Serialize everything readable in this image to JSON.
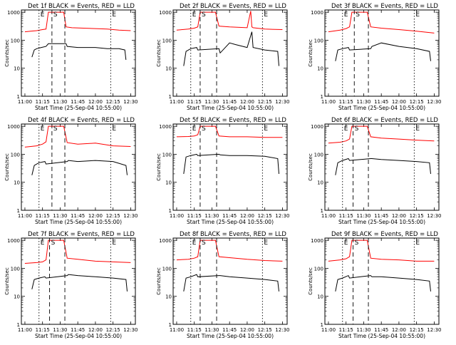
{
  "chart_data": [
    {
      "type": "line",
      "title": "Det 1f BLACK = Events, RED = LLD",
      "xlabel": "Start Time (25-Sep-04 10:55:00)",
      "ylabel": "Counts/sec",
      "scale_y": "log",
      "ylim": [
        1,
        1000
      ],
      "x_ticks": [
        "11:00",
        "11:15",
        "11:30",
        "11:45",
        "12:00",
        "12:15",
        "12:30"
      ],
      "markers": [
        {
          "label": "E",
          "style": "dotted",
          "x": "11:12"
        },
        {
          "label": "S",
          "style": "dashed",
          "x": "11:23"
        },
        {
          "label": "",
          "style": "dashed",
          "x": "11:34"
        },
        {
          "label": "E",
          "style": "dotted",
          "x": "12:13"
        }
      ],
      "series": [
        {
          "name": "LLD",
          "color": "#ff0000",
          "x": [
            "11:00",
            "11:05",
            "11:10",
            "11:15",
            "11:18",
            "11:20",
            "11:24",
            "11:30",
            "11:33",
            "11:35",
            "11:40",
            "11:50",
            "12:00",
            "12:10",
            "12:20",
            "12:30"
          ],
          "values": [
            200,
            210,
            220,
            240,
            250,
            1000,
            1000,
            1000,
            1000,
            300,
            280,
            270,
            260,
            250,
            230,
            220
          ]
        },
        {
          "name": "Events",
          "color": "#000000",
          "x": [
            "11:06",
            "11:08",
            "11:10",
            "11:14",
            "11:18",
            "11:20",
            "11:35",
            "11:36",
            "11:45",
            "12:00",
            "12:10",
            "12:20",
            "12:25",
            "12:26"
          ],
          "values": [
            25,
            45,
            50,
            55,
            60,
            75,
            75,
            60,
            55,
            55,
            50,
            50,
            45,
            20
          ]
        }
      ]
    },
    {
      "type": "line",
      "title": "Det 2f BLACK = Events, RED = LLD",
      "xlabel": "Start Time (25-Sep-04 10:55:00)",
      "ylabel": "Counts/sec",
      "scale_y": "log",
      "ylim": [
        1,
        1000
      ],
      "x_ticks": [
        "11:00",
        "11:15",
        "11:30",
        "11:45",
        "12:00",
        "12:15",
        "12:30"
      ],
      "markers": [
        {
          "label": "E",
          "style": "dotted",
          "x": "11:12"
        },
        {
          "label": "S",
          "style": "dashed",
          "x": "11:20"
        },
        {
          "label": "",
          "style": "dashed",
          "x": "11:34"
        },
        {
          "label": "E",
          "style": "dotted",
          "x": "12:13"
        }
      ],
      "series": [
        {
          "name": "LLD",
          "color": "#ff0000",
          "x": [
            "11:00",
            "11:05",
            "11:10",
            "11:15",
            "11:18",
            "11:20",
            "11:30",
            "11:33",
            "11:36",
            "11:45",
            "12:00",
            "12:03",
            "12:04",
            "12:05",
            "12:15",
            "12:30"
          ],
          "values": [
            230,
            240,
            250,
            270,
            300,
            1000,
            1000,
            1000,
            320,
            300,
            280,
            1100,
            300,
            280,
            250,
            240
          ]
        },
        {
          "name": "Events",
          "color": "#000000",
          "x": [
            "11:06",
            "11:08",
            "11:12",
            "11:17",
            "11:18",
            "11:36",
            "11:37",
            "11:45",
            "11:50",
            "12:00",
            "12:04",
            "12:05",
            "12:15",
            "12:26",
            "12:27"
          ],
          "values": [
            12,
            40,
            50,
            55,
            45,
            50,
            35,
            80,
            70,
            55,
            200,
            55,
            45,
            40,
            12
          ]
        }
      ]
    },
    {
      "type": "line",
      "title": "Det 3f BLACK = Events, RED = LLD",
      "xlabel": "Start Time (25-Sep-04 10:55:00)",
      "ylabel": "Counts/sec",
      "scale_y": "log",
      "ylim": [
        1,
        1000
      ],
      "x_ticks": [
        "11:00",
        "11:15",
        "11:30",
        "11:45",
        "12:00",
        "12:15",
        "12:30"
      ],
      "markers": [
        {
          "label": "E",
          "style": "dotted",
          "x": "11:12"
        },
        {
          "label": "S",
          "style": "dashed",
          "x": "11:22"
        },
        {
          "label": "",
          "style": "dashed",
          "x": "11:34"
        },
        {
          "label": "E",
          "style": "dotted",
          "x": "12:13"
        }
      ],
      "series": [
        {
          "name": "LLD",
          "color": "#ff0000",
          "x": [
            "11:00",
            "11:10",
            "11:15",
            "11:18",
            "11:20",
            "11:30",
            "11:33",
            "11:36",
            "11:45",
            "12:00",
            "12:15",
            "12:30"
          ],
          "values": [
            200,
            230,
            260,
            300,
            1000,
            1000,
            1000,
            300,
            270,
            240,
            210,
            180
          ]
        },
        {
          "name": "Events",
          "color": "#000000",
          "x": [
            "11:06",
            "11:08",
            "11:12",
            "11:17",
            "11:18",
            "11:36",
            "11:37",
            "11:45",
            "12:00",
            "12:15",
            "12:26",
            "12:27"
          ],
          "values": [
            18,
            45,
            50,
            55,
            45,
            50,
            60,
            80,
            60,
            50,
            40,
            18
          ]
        }
      ]
    },
    {
      "type": "line",
      "title": "Det 4f BLACK = Events, RED = LLD",
      "xlabel": "Start Time (25-Sep-04 10:55:00)",
      "ylabel": "Counts/sec",
      "scale_y": "log",
      "ylim": [
        1,
        1000
      ],
      "x_ticks": [
        "11:00",
        "11:15",
        "11:30",
        "11:45",
        "12:00",
        "12:15",
        "12:30"
      ],
      "markers": [
        {
          "label": "E",
          "style": "dotted",
          "x": "11:12"
        },
        {
          "label": "S",
          "style": "dashed",
          "x": "11:23"
        },
        {
          "label": "",
          "style": "dashed",
          "x": "11:34"
        },
        {
          "label": "E",
          "style": "dotted",
          "x": "12:13"
        }
      ],
      "series": [
        {
          "name": "LLD",
          "color": "#ff0000",
          "x": [
            "11:00",
            "11:10",
            "11:15",
            "11:18",
            "11:20",
            "11:30",
            "11:33",
            "11:36",
            "11:45",
            "12:00",
            "12:15",
            "12:30"
          ],
          "values": [
            180,
            200,
            230,
            280,
            1000,
            1000,
            1000,
            260,
            230,
            250,
            200,
            190
          ]
        },
        {
          "name": "Events",
          "color": "#000000",
          "x": [
            "11:06",
            "11:08",
            "11:12",
            "11:17",
            "11:18",
            "11:36",
            "11:37",
            "11:45",
            "12:00",
            "12:15",
            "12:26",
            "12:27"
          ],
          "values": [
            18,
            40,
            50,
            55,
            45,
            55,
            60,
            55,
            60,
            55,
            40,
            18
          ]
        }
      ]
    },
    {
      "type": "line",
      "title": "Det 5f BLACK = Events, RED = LLD",
      "xlabel": "Start Time (25-Sep-04 10:55:00)",
      "ylabel": "Counts/sec",
      "scale_y": "log",
      "ylim": [
        1,
        1000
      ],
      "x_ticks": [
        "11:00",
        "11:15",
        "11:30",
        "11:45",
        "12:00",
        "12:15",
        "12:30"
      ],
      "markers": [
        {
          "label": "E",
          "style": "dotted",
          "x": "11:12"
        },
        {
          "label": "S",
          "style": "dashed",
          "x": "11:20"
        },
        {
          "label": "",
          "style": "dashed",
          "x": "11:34"
        },
        {
          "label": "E",
          "style": "dotted",
          "x": "12:13"
        }
      ],
      "series": [
        {
          "name": "LLD",
          "color": "#ff0000",
          "x": [
            "11:00",
            "11:10",
            "11:15",
            "11:18",
            "11:20",
            "11:30",
            "11:33",
            "11:36",
            "11:45",
            "12:00",
            "12:15",
            "12:30"
          ],
          "values": [
            420,
            430,
            450,
            500,
            1000,
            1000,
            1000,
            450,
            420,
            420,
            400,
            400
          ]
        },
        {
          "name": "Events",
          "color": "#000000",
          "x": [
            "11:06",
            "11:08",
            "11:12",
            "11:17",
            "11:18",
            "11:36",
            "11:37",
            "11:45",
            "12:00",
            "12:15",
            "12:26",
            "12:27"
          ],
          "values": [
            20,
            80,
            90,
            100,
            90,
            100,
            95,
            90,
            90,
            85,
            70,
            20
          ]
        }
      ]
    },
    {
      "type": "line",
      "title": "Det 6f BLACK = Events, RED = LLD",
      "xlabel": "Start Time (25-Sep-04 10:55:00)",
      "ylabel": "Counts/sec",
      "scale_y": "log",
      "ylim": [
        1,
        1000
      ],
      "x_ticks": [
        "11:00",
        "11:15",
        "11:30",
        "11:45",
        "12:00",
        "12:15",
        "12:30"
      ],
      "markers": [
        {
          "label": "E",
          "style": "dotted",
          "x": "11:12"
        },
        {
          "label": "S",
          "style": "dashed",
          "x": "11:21"
        },
        {
          "label": "",
          "style": "dashed",
          "x": "11:34"
        },
        {
          "label": "E",
          "style": "dotted",
          "x": "12:13"
        }
      ],
      "series": [
        {
          "name": "LLD",
          "color": "#ff0000",
          "x": [
            "11:00",
            "11:10",
            "11:15",
            "11:18",
            "11:20",
            "11:30",
            "11:33",
            "11:36",
            "11:45",
            "12:00",
            "12:15",
            "12:30"
          ],
          "values": [
            250,
            270,
            300,
            350,
            1000,
            1000,
            1000,
            420,
            380,
            350,
            320,
            300
          ]
        },
        {
          "name": "Events",
          "color": "#000000",
          "x": [
            "11:06",
            "11:08",
            "11:12",
            "11:17",
            "11:18",
            "11:36",
            "11:37",
            "11:45",
            "12:00",
            "12:15",
            "12:26",
            "12:27"
          ],
          "values": [
            18,
            50,
            60,
            70,
            60,
            70,
            70,
            65,
            60,
            55,
            50,
            20
          ]
        }
      ]
    },
    {
      "type": "line",
      "title": "Det 7f BLACK = Events, RED = LLD",
      "xlabel": "Start Time (25-Sep-04 10:55:00)",
      "ylabel": "Counts/sec",
      "scale_y": "log",
      "ylim": [
        1,
        1000
      ],
      "x_ticks": [
        "11:00",
        "11:15",
        "11:30",
        "11:45",
        "12:00",
        "12:15",
        "12:30"
      ],
      "markers": [
        {
          "label": "E",
          "style": "dotted",
          "x": "11:12"
        },
        {
          "label": "S",
          "style": "dashed",
          "x": "11:21"
        },
        {
          "label": "",
          "style": "dashed",
          "x": "11:34"
        },
        {
          "label": "E",
          "style": "dotted",
          "x": "12:13"
        }
      ],
      "series": [
        {
          "name": "LLD",
          "color": "#ff0000",
          "x": [
            "11:00",
            "11:10",
            "11:15",
            "11:18",
            "11:20",
            "11:30",
            "11:33",
            "11:36",
            "11:45",
            "12:00",
            "12:15",
            "12:30"
          ],
          "values": [
            150,
            160,
            170,
            200,
            1000,
            1000,
            1000,
            230,
            210,
            180,
            170,
            160
          ]
        },
        {
          "name": "Events",
          "color": "#000000",
          "x": [
            "11:06",
            "11:08",
            "11:12",
            "11:17",
            "11:18",
            "11:36",
            "11:37",
            "11:45",
            "12:00",
            "12:15",
            "12:26",
            "12:27"
          ],
          "values": [
            18,
            40,
            45,
            50,
            45,
            55,
            60,
            55,
            50,
            45,
            40,
            15
          ]
        }
      ]
    },
    {
      "type": "line",
      "title": "Det 8f BLACK = Events, RED = LLD",
      "xlabel": "Start Time (25-Sep-04 10:55:00)",
      "ylabel": "Counts/sec",
      "scale_y": "log",
      "ylim": [
        1,
        1000
      ],
      "x_ticks": [
        "11:00",
        "11:15",
        "11:30",
        "11:45",
        "12:00",
        "12:15",
        "12:30"
      ],
      "markers": [
        {
          "label": "E",
          "style": "dotted",
          "x": "11:12"
        },
        {
          "label": "S",
          "style": "dashed",
          "x": "11:20"
        },
        {
          "label": "",
          "style": "dashed",
          "x": "11:34"
        },
        {
          "label": "E",
          "style": "dotted",
          "x": "12:13"
        }
      ],
      "series": [
        {
          "name": "LLD",
          "color": "#ff0000",
          "x": [
            "11:00",
            "11:10",
            "11:15",
            "11:18",
            "11:20",
            "11:30",
            "11:33",
            "11:36",
            "11:45",
            "12:00",
            "12:15",
            "12:30"
          ],
          "values": [
            200,
            210,
            230,
            260,
            1000,
            1000,
            1000,
            260,
            240,
            210,
            190,
            180
          ]
        },
        {
          "name": "Events",
          "color": "#000000",
          "x": [
            "11:06",
            "11:08",
            "11:12",
            "11:17",
            "11:18",
            "11:36",
            "11:37",
            "11:45",
            "12:00",
            "12:15",
            "12:26",
            "12:27"
          ],
          "values": [
            15,
            45,
            50,
            60,
            50,
            55,
            55,
            50,
            45,
            40,
            35,
            15
          ]
        }
      ]
    },
    {
      "type": "line",
      "title": "Det 9f BLACK = Events, RED = LLD",
      "xlabel": "Start Time (25-Sep-04 10:55:00)",
      "ylabel": "Counts/sec",
      "scale_y": "log",
      "ylim": [
        1,
        1000
      ],
      "x_ticks": [
        "11:00",
        "11:15",
        "11:30",
        "11:45",
        "12:00",
        "12:15",
        "12:30"
      ],
      "markers": [
        {
          "label": "E",
          "style": "dotted",
          "x": "11:12"
        },
        {
          "label": "S",
          "style": "dashed",
          "x": "11:21"
        },
        {
          "label": "",
          "style": "dashed",
          "x": "11:34"
        },
        {
          "label": "E",
          "style": "dotted",
          "x": "12:13"
        }
      ],
      "series": [
        {
          "name": "LLD",
          "color": "#ff0000",
          "x": [
            "11:00",
            "11:10",
            "11:15",
            "11:18",
            "11:20",
            "11:30",
            "11:33",
            "11:36",
            "11:45",
            "12:00",
            "12:15",
            "12:30"
          ],
          "values": [
            180,
            200,
            220,
            260,
            1000,
            1000,
            1000,
            230,
            210,
            200,
            180,
            180
          ]
        },
        {
          "name": "Events",
          "color": "#000000",
          "x": [
            "11:06",
            "11:08",
            "11:12",
            "11:17",
            "11:18",
            "11:36",
            "11:37",
            "11:45",
            "12:00",
            "12:15",
            "12:26",
            "12:27"
          ],
          "values": [
            15,
            40,
            45,
            55,
            45,
            55,
            50,
            50,
            45,
            40,
            35,
            15
          ]
        }
      ]
    }
  ]
}
